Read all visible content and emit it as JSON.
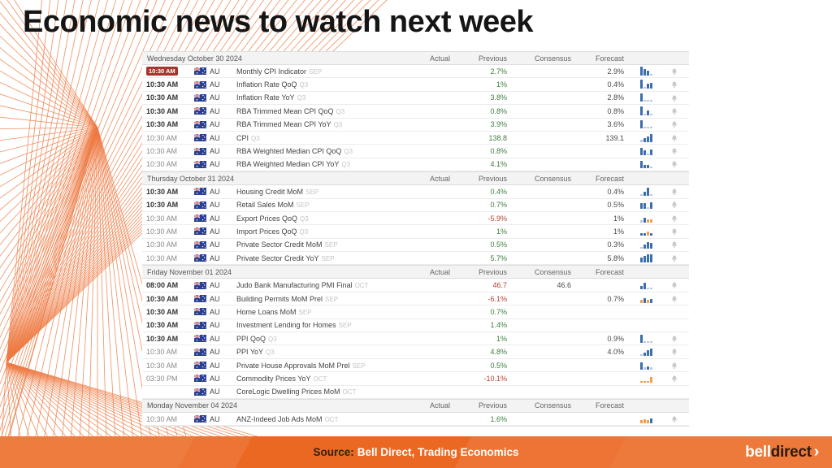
{
  "title": "Economic news to watch next week",
  "colors": {
    "accent_orange": "#ee7b44",
    "footer_bar_orange": "#ed7434",
    "badge_red": "#a6362c",
    "value_green": "#3f7d3f",
    "value_red": "#b04238",
    "spark_blue": "#3c6eae",
    "spark_orange": "#f0a04a",
    "bell_gray": "#c9c9c9"
  },
  "footer": {
    "source_prefix": "Source:",
    "source_text": "Bell Direct, Trading Economics",
    "logo_bell": "bell",
    "logo_direct": "direct",
    "logo_arrow": "›"
  },
  "table": {
    "columns": [
      "Actual",
      "Previous",
      "Consensus",
      "Forecast"
    ],
    "sections": [
      {
        "date": "Wednesday October 30 2024",
        "rows": [
          {
            "time": "10:30 AM",
            "badge": true,
            "bold": true,
            "country": "AU",
            "event": "Monthly CPI Indicator",
            "tag": "SEP",
            "actual": "",
            "previous": "2.7%",
            "prev_red": false,
            "consensus": "",
            "forecast": "2.9%",
            "spark": "b8,b6,b4,g1",
            "bell": true
          },
          {
            "time": "10:30 AM",
            "badge": false,
            "bold": true,
            "country": "AU",
            "event": "Inflation Rate QoQ",
            "tag": "Q3",
            "actual": "",
            "previous": "1%",
            "prev_red": false,
            "consensus": "",
            "forecast": "0.4%",
            "spark": "b8,g1,b4,b5",
            "bell": true
          },
          {
            "time": "10:30 AM",
            "badge": false,
            "bold": true,
            "country": "AU",
            "event": "Inflation Rate YoY",
            "tag": "Q3",
            "actual": "",
            "previous": "3.8%",
            "prev_red": false,
            "consensus": "",
            "forecast": "2.8%",
            "spark": "b8,g1,g1,g1",
            "bell": true
          },
          {
            "time": "10:30 AM",
            "badge": false,
            "bold": true,
            "country": "AU",
            "event": "RBA Trimmed Mean CPI QoQ",
            "tag": "Q3",
            "actual": "",
            "previous": "0.8%",
            "prev_red": false,
            "consensus": "",
            "forecast": "0.8%",
            "spark": "b8,g1,b4,g1",
            "bell": true
          },
          {
            "time": "10:30 AM",
            "badge": false,
            "bold": true,
            "country": "AU",
            "event": "RBA Trimmed Mean CPI YoY",
            "tag": "Q3",
            "actual": "",
            "previous": "3.9%",
            "prev_red": false,
            "consensus": "",
            "forecast": "3.6%",
            "spark": "b8,g1,g1,g1",
            "bell": true
          },
          {
            "time": "10:30 AM",
            "badge": false,
            "bold": false,
            "country": "AU",
            "event": "CPI",
            "tag": "Q3",
            "actual": "",
            "previous": "138.8",
            "prev_red": false,
            "consensus": "",
            "forecast": "139.1",
            "spark": "g1,b3,b5,b7",
            "bell": true
          },
          {
            "time": "10:30 AM",
            "badge": false,
            "bold": false,
            "country": "AU",
            "event": "RBA Weighted Median CPI QoQ",
            "tag": "Q3",
            "actual": "",
            "previous": "0.8%",
            "prev_red": false,
            "consensus": "",
            "forecast": "",
            "spark": "b7,b4,g1,b5",
            "bell": true
          },
          {
            "time": "10:30 AM",
            "badge": false,
            "bold": false,
            "country": "AU",
            "event": "RBA Weighted Median CPI YoY",
            "tag": "Q3",
            "actual": "",
            "previous": "4.1%",
            "prev_red": false,
            "consensus": "",
            "forecast": "",
            "spark": "b7,b3,b3,g1",
            "bell": true
          }
        ]
      },
      {
        "date": "Thursday October 31 2024",
        "rows": [
          {
            "time": "10:30 AM",
            "badge": false,
            "bold": true,
            "country": "AU",
            "event": "Housing Credit MoM",
            "tag": "SEP",
            "actual": "",
            "previous": "0.4%",
            "prev_red": false,
            "consensus": "",
            "forecast": "0.4%",
            "spark": "g1,b3,b7,g1",
            "bell": true
          },
          {
            "time": "10:30 AM",
            "badge": false,
            "bold": true,
            "country": "AU",
            "event": "Retail Sales MoM",
            "tag": "SEP",
            "actual": "",
            "previous": "0.7%",
            "prev_red": false,
            "consensus": "",
            "forecast": "0.5%",
            "spark": "b5,b5,g1,b6",
            "bell": true
          },
          {
            "time": "10:30 AM",
            "badge": false,
            "bold": false,
            "country": "AU",
            "event": "Export Prices QoQ",
            "tag": "Q3",
            "actual": "",
            "previous": "-5.9%",
            "prev_red": true,
            "consensus": "",
            "forecast": "1%",
            "spark": "g1,b4,o2,o2",
            "bell": true
          },
          {
            "time": "10:30 AM",
            "badge": false,
            "bold": false,
            "country": "AU",
            "event": "Import Prices QoQ",
            "tag": "Q3",
            "actual": "",
            "previous": "1%",
            "prev_red": false,
            "consensus": "",
            "forecast": "1%",
            "spark": "b2,b2,o3,b2",
            "bell": true
          },
          {
            "time": "10:30 AM",
            "badge": false,
            "bold": false,
            "country": "AU",
            "event": "Private Sector Credit MoM",
            "tag": "SEP",
            "actual": "",
            "previous": "0.5%",
            "prev_red": false,
            "consensus": "",
            "forecast": "0.3%",
            "spark": "g1,b4,b6,b5",
            "bell": true
          },
          {
            "time": "10:30 AM",
            "badge": false,
            "bold": false,
            "country": "AU",
            "event": "Private Sector Credit YoY",
            "tag": "SEP",
            "actual": "",
            "previous": "5.7%",
            "prev_red": false,
            "consensus": "",
            "forecast": "5.8%",
            "spark": "b4,b6,b7,b7",
            "bell": true
          }
        ]
      },
      {
        "date": "Friday November 01 2024",
        "rows": [
          {
            "time": "08:00 AM",
            "badge": false,
            "bold": true,
            "country": "AU",
            "event": "Judo Bank Manufacturing PMI Final",
            "tag": "OCT",
            "actual": "",
            "previous": "46.7",
            "prev_red": true,
            "consensus": "46.6",
            "forecast": "",
            "spark": "b3,b6,g1,g1",
            "bell": true
          },
          {
            "time": "10:30 AM",
            "badge": false,
            "bold": true,
            "country": "AU",
            "event": "Building Permits MoM Prel",
            "tag": "SEP",
            "actual": "",
            "previous": "-6.1%",
            "prev_red": true,
            "consensus": "",
            "forecast": "0.7%",
            "spark": "o2,b4,o2,b3",
            "bell": true
          },
          {
            "time": "10:30 AM",
            "badge": false,
            "bold": true,
            "country": "AU",
            "event": "Home Loans MoM",
            "tag": "SEP",
            "actual": "",
            "previous": "0.7%",
            "prev_red": false,
            "consensus": "",
            "forecast": "",
            "spark": "",
            "bell": false
          },
          {
            "time": "10:30 AM",
            "badge": false,
            "bold": true,
            "country": "AU",
            "event": "Investment Lending for Homes",
            "tag": "SEP",
            "actual": "",
            "previous": "1.4%",
            "prev_red": false,
            "consensus": "",
            "forecast": "",
            "spark": "",
            "bell": false
          },
          {
            "time": "10:30 AM",
            "badge": false,
            "bold": true,
            "country": "AU",
            "event": "PPI QoQ",
            "tag": "Q3",
            "actual": "",
            "previous": "1%",
            "prev_red": false,
            "consensus": "",
            "forecast": "0.9%",
            "spark": "b7,g1,g1,g1",
            "bell": true
          },
          {
            "time": "10:30 AM",
            "badge": false,
            "bold": false,
            "country": "AU",
            "event": "PPI YoY",
            "tag": "Q3",
            "actual": "",
            "previous": "4.8%",
            "prev_red": false,
            "consensus": "",
            "forecast": "4.0%",
            "spark": "g1,b3,b5,b7",
            "bell": true
          },
          {
            "time": "10:30 AM",
            "badge": false,
            "bold": false,
            "country": "AU",
            "event": "Private House Approvals MoM Prel",
            "tag": "SEP",
            "actual": "",
            "previous": "0.5%",
            "prev_red": false,
            "consensus": "",
            "forecast": "",
            "spark": "b6,g1,b2,g1",
            "bell": true
          },
          {
            "time": "03:30 PM",
            "badge": false,
            "bold": false,
            "country": "AU",
            "event": "Commodity Prices YoY",
            "tag": "OCT",
            "actual": "",
            "previous": "-10.1%",
            "prev_red": true,
            "consensus": "",
            "forecast": "",
            "spark": "o1,o1,o1,o5",
            "bell": true
          },
          {
            "time": "",
            "badge": false,
            "bold": false,
            "country": "AU",
            "event": "CoreLogic Dwelling Prices MoM",
            "tag": "OCT",
            "actual": "",
            "previous": "",
            "prev_red": false,
            "consensus": "",
            "forecast": "",
            "spark": "",
            "bell": false
          }
        ]
      },
      {
        "date": "Monday November 04 2024",
        "rows": [
          {
            "time": "10:30 AM",
            "badge": false,
            "bold": false,
            "country": "AU",
            "event": "ANZ-Indeed Job Ads MoM",
            "tag": "OCT",
            "actual": "",
            "previous": "1.6%",
            "prev_red": false,
            "consensus": "",
            "forecast": "",
            "spark": "o2,o3,o2,b4",
            "bell": true
          }
        ]
      }
    ]
  }
}
